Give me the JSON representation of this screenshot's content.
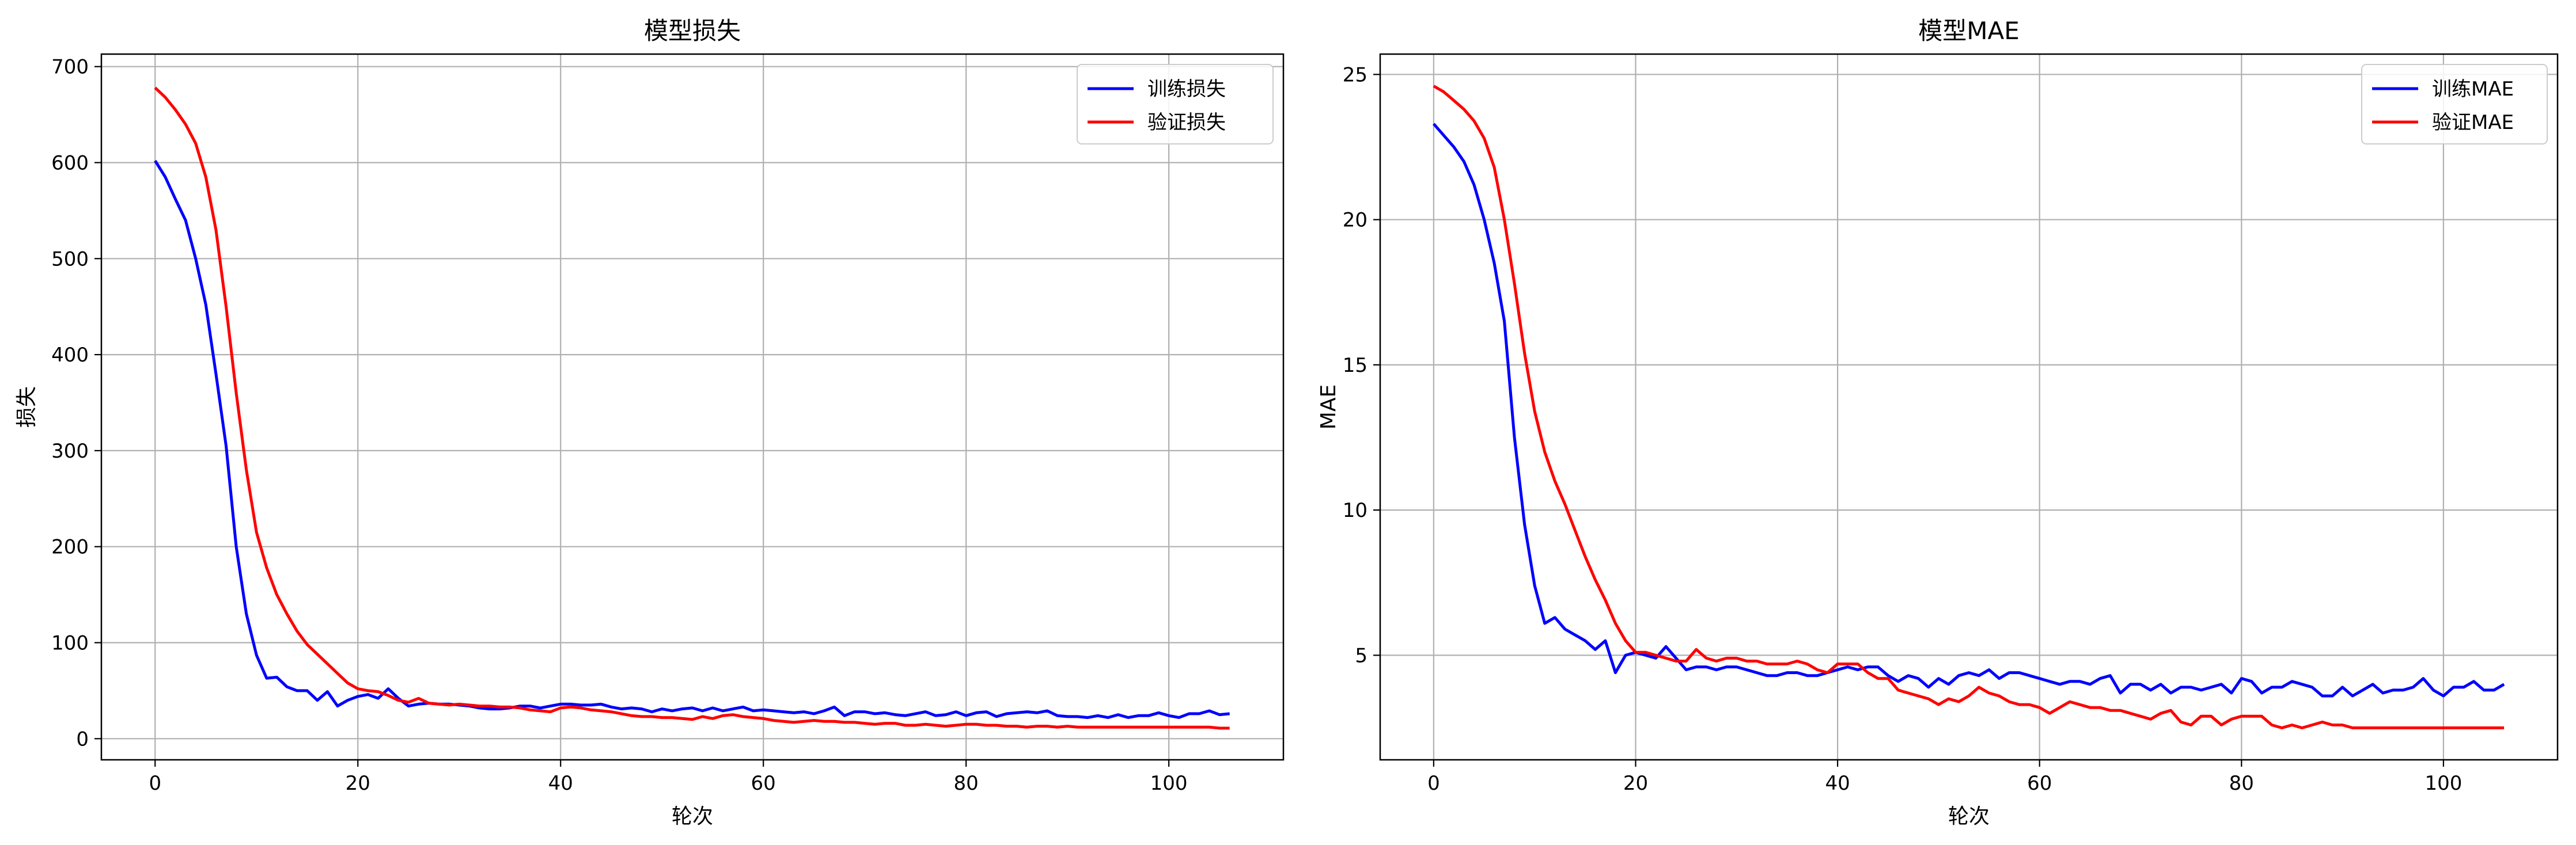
{
  "chart_data": [
    {
      "type": "line",
      "title": "模型损失",
      "xlabel": "轮次",
      "ylabel": "损失",
      "xlim": [
        -5.3,
        111.3
      ],
      "ylim": [
        -22,
        713
      ],
      "xticks": [
        0,
        20,
        40,
        60,
        80,
        100
      ],
      "yticks": [
        0,
        100,
        200,
        300,
        400,
        500,
        600,
        700
      ],
      "grid": true,
      "legend_position": "top-right",
      "series": [
        {
          "name": "训练损失",
          "color": "#0000ff",
          "x": [
            0,
            1,
            2,
            3,
            4,
            5,
            6,
            7,
            8,
            9,
            10,
            11,
            12,
            13,
            14,
            15,
            16,
            17,
            18,
            19,
            20,
            21,
            22,
            23,
            24,
            25,
            26,
            27,
            28,
            29,
            30,
            31,
            32,
            33,
            34,
            35,
            36,
            37,
            38,
            39,
            40,
            41,
            42,
            43,
            44,
            45,
            46,
            47,
            48,
            49,
            50,
            51,
            52,
            53,
            54,
            55,
            56,
            57,
            58,
            59,
            60,
            61,
            62,
            63,
            64,
            65,
            66,
            67,
            68,
            69,
            70,
            71,
            72,
            73,
            74,
            75,
            76,
            77,
            78,
            79,
            80,
            81,
            82,
            83,
            84,
            85,
            86,
            87,
            88,
            89,
            90,
            91,
            92,
            93,
            94,
            95,
            96,
            97,
            98,
            99,
            100,
            101,
            102,
            103,
            104,
            105,
            106
          ],
          "y": [
            602,
            585,
            562,
            540,
            500,
            452,
            380,
            305,
            200,
            130,
            87,
            63,
            64,
            54,
            50,
            50,
            40,
            49,
            34,
            40,
            44,
            46,
            42,
            52,
            42,
            34,
            36,
            37,
            36,
            36,
            35,
            34,
            32,
            31,
            31,
            32,
            34,
            34,
            32,
            34,
            36,
            36,
            35,
            35,
            36,
            33,
            31,
            32,
            31,
            28,
            31,
            29,
            31,
            32,
            29,
            32,
            29,
            31,
            33,
            29,
            30,
            29,
            28,
            27,
            28,
            26,
            29,
            33,
            24,
            28,
            28,
            26,
            27,
            25,
            24,
            26,
            28,
            24,
            25,
            28,
            24,
            27,
            28,
            23,
            26,
            27,
            28,
            27,
            29,
            24,
            23,
            23,
            22,
            24,
            22,
            25,
            22,
            24,
            24,
            27,
            24,
            22,
            26,
            26,
            29,
            25,
            26
          ]
        },
        {
          "name": "验证损失",
          "color": "#ff0000",
          "x": [
            0,
            1,
            2,
            3,
            4,
            5,
            6,
            7,
            8,
            9,
            10,
            11,
            12,
            13,
            14,
            15,
            16,
            17,
            18,
            19,
            20,
            21,
            22,
            23,
            24,
            25,
            26,
            27,
            28,
            29,
            30,
            31,
            32,
            33,
            34,
            35,
            36,
            37,
            38,
            39,
            40,
            41,
            42,
            43,
            44,
            45,
            46,
            47,
            48,
            49,
            50,
            51,
            52,
            53,
            54,
            55,
            56,
            57,
            58,
            59,
            60,
            61,
            62,
            63,
            64,
            65,
            66,
            67,
            68,
            69,
            70,
            71,
            72,
            73,
            74,
            75,
            76,
            77,
            78,
            79,
            80,
            81,
            82,
            83,
            84,
            85,
            86,
            87,
            88,
            89,
            90,
            91,
            92,
            93,
            94,
            95,
            96,
            97,
            98,
            99,
            100,
            101,
            102,
            103,
            104,
            105,
            106
          ],
          "y": [
            678,
            668,
            655,
            640,
            620,
            585,
            530,
            450,
            360,
            280,
            215,
            178,
            150,
            130,
            112,
            98,
            88,
            78,
            68,
            58,
            52,
            50,
            49,
            45,
            40,
            38,
            42,
            37,
            36,
            35,
            36,
            35,
            34,
            34,
            33,
            33,
            32,
            30,
            29,
            28,
            32,
            33,
            32,
            30,
            29,
            28,
            26,
            24,
            23,
            23,
            22,
            22,
            21,
            20,
            23,
            21,
            24,
            25,
            23,
            22,
            21,
            19,
            18,
            17,
            18,
            19,
            18,
            18,
            17,
            17,
            16,
            15,
            16,
            16,
            14,
            14,
            15,
            14,
            13,
            14,
            15,
            15,
            14,
            14,
            13,
            13,
            12,
            13,
            13,
            12,
            13,
            12,
            12,
            12,
            12,
            12,
            12,
            12,
            12,
            12,
            12,
            12,
            12,
            12,
            12,
            11,
            11
          ]
        }
      ]
    },
    {
      "type": "line",
      "title": "模型MAE",
      "xlabel": "轮次",
      "ylabel": "MAE",
      "xlim": [
        -5.3,
        111.3
      ],
      "ylim": [
        1.4,
        25.7
      ],
      "xticks": [
        0,
        20,
        40,
        60,
        80,
        100
      ],
      "yticks": [
        5,
        10,
        15,
        20,
        25
      ],
      "grid": true,
      "legend_position": "top-right",
      "series": [
        {
          "name": "训练MAE",
          "color": "#0000ff",
          "x": [
            0,
            1,
            2,
            3,
            4,
            5,
            6,
            7,
            8,
            9,
            10,
            11,
            12,
            13,
            14,
            15,
            16,
            17,
            18,
            19,
            20,
            21,
            22,
            23,
            24,
            25,
            26,
            27,
            28,
            29,
            30,
            31,
            32,
            33,
            34,
            35,
            36,
            37,
            38,
            39,
            40,
            41,
            42,
            43,
            44,
            45,
            46,
            47,
            48,
            49,
            50,
            51,
            52,
            53,
            54,
            55,
            56,
            57,
            58,
            59,
            60,
            61,
            62,
            63,
            64,
            65,
            66,
            67,
            68,
            69,
            70,
            71,
            72,
            73,
            74,
            75,
            76,
            77,
            78,
            79,
            80,
            81,
            82,
            83,
            84,
            85,
            86,
            87,
            88,
            89,
            90,
            91,
            92,
            93,
            94,
            95,
            96,
            97,
            98,
            99,
            100,
            101,
            102,
            103,
            104,
            105,
            106
          ],
          "y": [
            23.3,
            22.9,
            22.5,
            22.0,
            21.2,
            20.0,
            18.5,
            16.5,
            12.5,
            9.5,
            7.4,
            6.1,
            6.3,
            5.9,
            5.7,
            5.5,
            5.2,
            5.5,
            4.4,
            5.0,
            5.1,
            5.0,
            4.9,
            5.3,
            4.9,
            4.5,
            4.6,
            4.6,
            4.5,
            4.6,
            4.6,
            4.5,
            4.4,
            4.3,
            4.3,
            4.4,
            4.4,
            4.3,
            4.3,
            4.4,
            4.5,
            4.6,
            4.5,
            4.6,
            4.6,
            4.3,
            4.1,
            4.3,
            4.2,
            3.9,
            4.2,
            4.0,
            4.3,
            4.4,
            4.3,
            4.5,
            4.2,
            4.4,
            4.4,
            4.3,
            4.2,
            4.1,
            4.0,
            4.1,
            4.1,
            4.0,
            4.2,
            4.3,
            3.7,
            4.0,
            4.0,
            3.8,
            4.0,
            3.7,
            3.9,
            3.9,
            3.8,
            3.9,
            4.0,
            3.7,
            4.2,
            4.1,
            3.7,
            3.9,
            3.9,
            4.1,
            4.0,
            3.9,
            3.6,
            3.6,
            3.9,
            3.6,
            3.8,
            4.0,
            3.7,
            3.8,
            3.8,
            3.9,
            4.2,
            3.8,
            3.6,
            3.9,
            3.9,
            4.1,
            3.8,
            3.8,
            4.0
          ]
        },
        {
          "name": "验证MAE",
          "color": "#ff0000",
          "x": [
            0,
            1,
            2,
            3,
            4,
            5,
            6,
            7,
            8,
            9,
            10,
            11,
            12,
            13,
            14,
            15,
            16,
            17,
            18,
            19,
            20,
            21,
            22,
            23,
            24,
            25,
            26,
            27,
            28,
            29,
            30,
            31,
            32,
            33,
            34,
            35,
            36,
            37,
            38,
            39,
            40,
            41,
            42,
            43,
            44,
            45,
            46,
            47,
            48,
            49,
            50,
            51,
            52,
            53,
            54,
            55,
            56,
            57,
            58,
            59,
            60,
            61,
            62,
            63,
            64,
            65,
            66,
            67,
            68,
            69,
            70,
            71,
            72,
            73,
            74,
            75,
            76,
            77,
            78,
            79,
            80,
            81,
            82,
            83,
            84,
            85,
            86,
            87,
            88,
            89,
            90,
            91,
            92,
            93,
            94,
            95,
            96,
            97,
            98,
            99,
            100,
            101,
            102,
            103,
            104,
            105,
            106
          ],
          "y": [
            24.6,
            24.4,
            24.1,
            23.8,
            23.4,
            22.8,
            21.8,
            20.0,
            17.8,
            15.4,
            13.4,
            12.0,
            11.0,
            10.2,
            9.3,
            8.4,
            7.6,
            6.9,
            6.1,
            5.5,
            5.1,
            5.1,
            5.0,
            4.9,
            4.8,
            4.8,
            5.2,
            4.9,
            4.8,
            4.9,
            4.9,
            4.8,
            4.8,
            4.7,
            4.7,
            4.7,
            4.8,
            4.7,
            4.5,
            4.4,
            4.7,
            4.7,
            4.7,
            4.4,
            4.2,
            4.2,
            3.8,
            3.7,
            3.6,
            3.5,
            3.3,
            3.5,
            3.4,
            3.6,
            3.9,
            3.7,
            3.6,
            3.4,
            3.3,
            3.3,
            3.2,
            3.0,
            3.2,
            3.4,
            3.3,
            3.2,
            3.2,
            3.1,
            3.1,
            3.0,
            2.9,
            2.8,
            3.0,
            3.1,
            2.7,
            2.6,
            2.9,
            2.9,
            2.6,
            2.8,
            2.9,
            2.9,
            2.9,
            2.6,
            2.5,
            2.6,
            2.5,
            2.6,
            2.7,
            2.6,
            2.6,
            2.5,
            2.5,
            2.5,
            2.5,
            2.5,
            2.5,
            2.5,
            2.5,
            2.5,
            2.5,
            2.5,
            2.5,
            2.5,
            2.5,
            2.5,
            2.5
          ]
        }
      ]
    }
  ]
}
